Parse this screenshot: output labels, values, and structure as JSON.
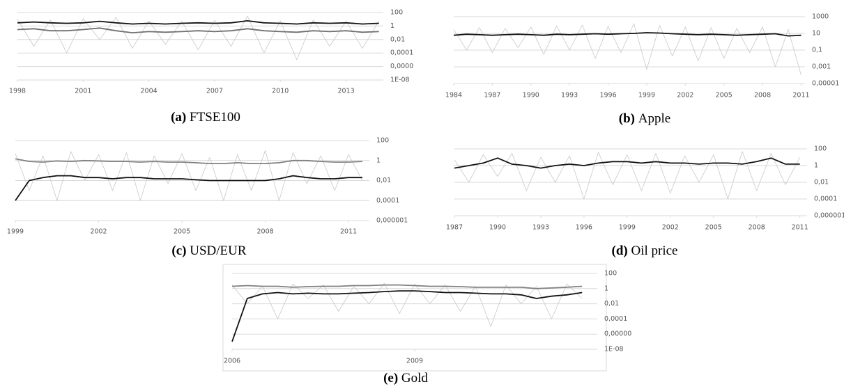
{
  "chart_data": [
    {
      "type": "line",
      "label": "(a)",
      "title": "FTSE100",
      "log_scale": true,
      "grid": true,
      "x": [
        1998,
        1998.75,
        1999.5,
        2000.25,
        2001,
        2001.75,
        2002.5,
        2003.25,
        2004,
        2004.75,
        2005.5,
        2006.25,
        2007,
        2007.75,
        2008.5,
        2009.25,
        2010,
        2010.75,
        2011.5,
        2012.25,
        2013,
        2013.75,
        2014.5
      ],
      "xlim": [
        1998,
        2014.7
      ],
      "xticks": [
        1998,
        2001,
        2004,
        2007,
        2010,
        2013
      ],
      "ylim": [
        1e-08,
        100
      ],
      "yticks": [
        100,
        1,
        {
          "value": 0.01,
          "label": "0,01"
        },
        {
          "value": 0.0001,
          "label": "0,0001"
        },
        {
          "value": 1e-06,
          "label": "0,0000"
        },
        {
          "value": 1e-08,
          "label": "1E-08"
        }
      ],
      "series": [
        {
          "color": "#c8c8c8",
          "values": [
            10,
            0.001,
            8,
            0.0001,
            12,
            0.01,
            20,
            0.0005,
            6,
            0.002,
            5,
            0.0003,
            7,
            0.001,
            30,
            0.0001,
            6,
            1e-05,
            8,
            0.001,
            5,
            0.0005,
            6
          ]
        },
        {
          "color": "#707070",
          "values": [
            0.3,
            0.4,
            0.2,
            0.2,
            0.3,
            0.5,
            0.2,
            0.1,
            0.15,
            0.12,
            0.15,
            0.2,
            0.15,
            0.2,
            0.4,
            0.2,
            0.15,
            0.12,
            0.2,
            0.15,
            0.2,
            0.12,
            0.15
          ]
        },
        {
          "color": "#111111",
          "values": [
            3,
            4,
            3,
            2.5,
            3,
            5,
            3,
            2,
            2.5,
            2,
            2.5,
            3,
            2.5,
            3,
            6,
            3,
            2.5,
            2,
            3,
            2.5,
            3,
            2,
            2.5
          ]
        }
      ]
    },
    {
      "type": "line",
      "label": "(b)",
      "title": "Apple",
      "log_scale": true,
      "grid": true,
      "x": [
        1984,
        1985,
        1986,
        1987,
        1988,
        1989,
        1990,
        1991,
        1992,
        1993,
        1994,
        1995,
        1996,
        1997,
        1998,
        1999,
        2000,
        2001,
        2002,
        2003,
        2004,
        2005,
        2006,
        2007,
        2008,
        2009,
        2010,
        2011
      ],
      "xlim": [
        1984,
        2011.3
      ],
      "xticks": [
        1984,
        1987,
        1990,
        1993,
        1996,
        1999,
        2002,
        2005,
        2008,
        2011
      ],
      "ylim": [
        1e-05,
        1000
      ],
      "yticks": [
        1000,
        10,
        {
          "value": 0.1,
          "label": "0,1"
        },
        {
          "value": 0.001,
          "label": "0,001"
        },
        {
          "value": 1e-05,
          "label": "0,00001"
        }
      ],
      "series": [
        {
          "color": "#c8c8c8",
          "values": [
            30,
            0.1,
            50,
            0.05,
            40,
            0.2,
            60,
            0.03,
            80,
            0.1,
            100,
            0.01,
            70,
            0.05,
            150,
            0.0005,
            90,
            0.02,
            60,
            0.005,
            50,
            0.01,
            40,
            0.05,
            60,
            0.001,
            30,
            0.0001
          ]
        },
        {
          "color": "#111111",
          "values": [
            6,
            8,
            7,
            6,
            7,
            8,
            7,
            6,
            8,
            7,
            8,
            9,
            8,
            9,
            10,
            12,
            11,
            9,
            8,
            7,
            8,
            7,
            6,
            7,
            8,
            9,
            5,
            6
          ]
        }
      ]
    },
    {
      "type": "line",
      "label": "(c)",
      "title": "USD/EUR",
      "log_scale": true,
      "grid": true,
      "x": [
        1999,
        1999.5,
        2000,
        2000.5,
        2001,
        2001.5,
        2002,
        2002.5,
        2003,
        2003.5,
        2004,
        2004.5,
        2005,
        2005.5,
        2006,
        2006.5,
        2007,
        2007.5,
        2008,
        2008.5,
        2009,
        2009.5,
        2010,
        2010.5,
        2011,
        2011.5
      ],
      "xlim": [
        1999,
        2011.75
      ],
      "xticks": [
        1999,
        2002,
        2005,
        2008,
        2011
      ],
      "ylim": [
        1e-06,
        100
      ],
      "yticks": [
        100,
        1,
        {
          "value": 0.01,
          "label": "0,01"
        },
        {
          "value": 0.0001,
          "label": "0,0001"
        },
        {
          "value": 1e-06,
          "label": "0,000001"
        }
      ],
      "series": [
        {
          "color": "#c8c8c8",
          "values": [
            5,
            0.001,
            3,
            0.0001,
            8,
            0.01,
            4,
            0.001,
            6,
            0.0001,
            3,
            0.005,
            5,
            0.001,
            2,
            0.0001,
            4,
            0.001,
            10,
            0.0001,
            6,
            0.005,
            3,
            0.001,
            4,
            0.01
          ]
        },
        {
          "color": "#808080",
          "values": [
            1.5,
            0.8,
            0.7,
            0.9,
            0.8,
            1,
            0.9,
            0.8,
            0.8,
            0.7,
            0.8,
            0.7,
            0.7,
            0.6,
            0.5,
            0.5,
            0.6,
            0.5,
            0.5,
            0.6,
            1,
            1,
            0.8,
            0.7,
            0.7,
            0.8
          ]
        },
        {
          "color": "#111111",
          "values": [
            0.0001,
            0.01,
            0.02,
            0.03,
            0.03,
            0.02,
            0.02,
            0.015,
            0.02,
            0.02,
            0.015,
            0.015,
            0.015,
            0.012,
            0.01,
            0.01,
            0.01,
            0.01,
            0.01,
            0.015,
            0.03,
            0.02,
            0.015,
            0.015,
            0.02,
            0.02
          ]
        }
      ]
    },
    {
      "type": "line",
      "label": "(d)",
      "title": "Oil price",
      "log_scale": true,
      "grid": true,
      "x": [
        1987,
        1988,
        1989,
        1990,
        1991,
        1992,
        1993,
        1994,
        1995,
        1996,
        1997,
        1998,
        1999,
        2000,
        2001,
        2002,
        2003,
        2004,
        2005,
        2006,
        2007,
        2008,
        2009,
        2010,
        2011
      ],
      "xlim": [
        1987,
        2011.5
      ],
      "xticks": [
        1987,
        1990,
        1993,
        1996,
        1999,
        2002,
        2005,
        2008,
        2011
      ],
      "ylim": [
        1e-06,
        100
      ],
      "yticks": [
        100,
        1,
        {
          "value": 0.01,
          "label": "0,01"
        },
        {
          "value": 0.0001,
          "label": "0,0001"
        },
        {
          "value": 1e-06,
          "label": "0,000001"
        }
      ],
      "series": [
        {
          "color": "#c8c8c8",
          "values": [
            5,
            0.01,
            20,
            0.05,
            30,
            0.001,
            10,
            0.01,
            15,
            0.0001,
            40,
            0.005,
            20,
            0.001,
            30,
            0.0005,
            15,
            0.01,
            20,
            0.0001,
            50,
            0.001,
            30,
            0.005,
            10
          ]
        },
        {
          "color": "#111111",
          "values": [
            0.5,
            1,
            2,
            8,
            1.5,
            1,
            0.5,
            1,
            1.5,
            1,
            2,
            3,
            3,
            2,
            3,
            2,
            2,
            1.5,
            2,
            2,
            1.5,
            3,
            8,
            1.5,
            1.5
          ]
        }
      ]
    },
    {
      "type": "line",
      "label": "(e)",
      "title": "Gold",
      "log_scale": true,
      "grid": true,
      "x": [
        2006,
        2006.25,
        2006.5,
        2006.75,
        2007,
        2007.25,
        2007.5,
        2007.75,
        2008,
        2008.25,
        2008.5,
        2008.75,
        2009,
        2009.25,
        2009.5,
        2009.75,
        2010,
        2010.25,
        2010.5,
        2010.75,
        2011,
        2011.25,
        2011.5,
        2011.75
      ],
      "xlim": [
        2006,
        2012
      ],
      "xticks": [
        2006,
        2009
      ],
      "ylim": [
        1e-08,
        100
      ],
      "yticks": [
        100,
        1,
        {
          "value": 0.01,
          "label": "0,01"
        },
        {
          "value": 0.0001,
          "label": "0,0001"
        },
        {
          "value": 1e-06,
          "label": "0,00000"
        },
        {
          "value": 1e-08,
          "label": "1E-08"
        }
      ],
      "series": [
        {
          "color": "#c8c8c8",
          "values": [
            3,
            0.01,
            2,
            0.0001,
            4,
            0.05,
            3,
            0.001,
            2,
            0.01,
            5,
            0.0005,
            4,
            0.01,
            3,
            0.001,
            2,
            1e-05,
            3,
            0.01,
            2,
            0.0001,
            4,
            0.05
          ]
        },
        {
          "color": "#808080",
          "values": [
            2,
            2.5,
            2,
            2,
            1.5,
            1.8,
            2,
            2,
            2.5,
            2.5,
            3,
            3,
            2.5,
            2,
            2,
            1.8,
            1.5,
            1.5,
            1.5,
            1.5,
            1,
            1.2,
            1.5,
            2
          ]
        },
        {
          "color": "#111111",
          "values": [
            1e-07,
            0.05,
            0.2,
            0.3,
            0.2,
            0.25,
            0.2,
            0.2,
            0.25,
            0.3,
            0.4,
            0.5,
            0.5,
            0.4,
            0.3,
            0.3,
            0.25,
            0.2,
            0.2,
            0.15,
            0.05,
            0.1,
            0.15,
            0.3
          ]
        }
      ]
    }
  ]
}
